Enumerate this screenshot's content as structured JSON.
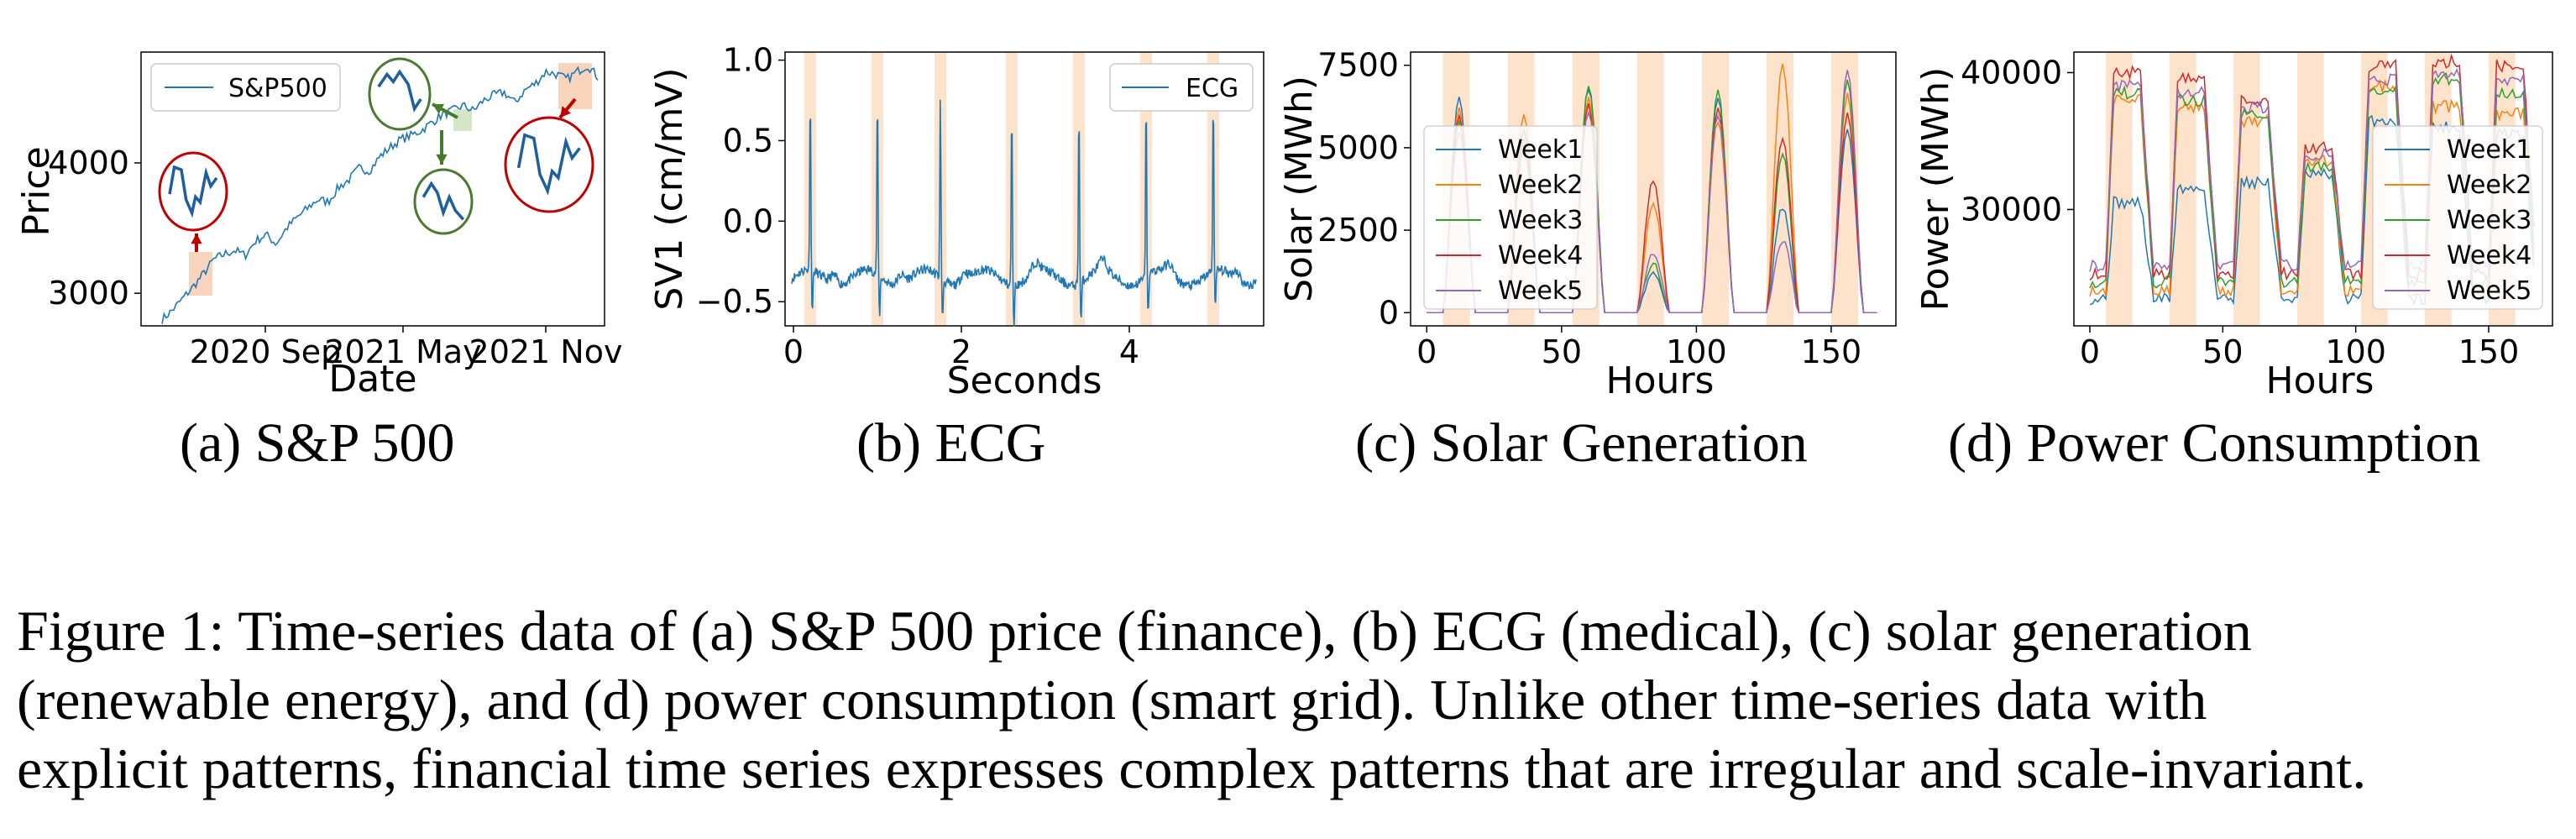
{
  "chart_data": [
    {
      "type": "line",
      "xlabel": "Date",
      "ylabel": "Price",
      "xticks": [
        "2020 Sep",
        "2021 May",
        "2021 Nov"
      ],
      "yticks": [
        3000,
        4000
      ],
      "ylim": [
        2750,
        4850
      ],
      "legend": [
        "S&P500"
      ],
      "legend_position": "top-left",
      "series": [
        {
          "name": "S&P500",
          "color": "#1f77b4",
          "values": [
            2800,
            2870,
            2960,
            3050,
            3150,
            3260,
            3300,
            3330,
            3290,
            3400,
            3450,
            3380,
            3500,
            3580,
            3650,
            3720,
            3700,
            3810,
            3870,
            3960,
            3940,
            4050,
            4120,
            4180,
            4210,
            4250,
            4310,
            4370,
            4400,
            4440,
            4400,
            4480,
            4520,
            4540,
            4460,
            4560,
            4610,
            4700,
            4680,
            4640,
            4700,
            4750,
            4660
          ]
        }
      ],
      "highlight_color": "#f7c9ad",
      "zoom_circle_colors": [
        "#c00000",
        "#4a7a2e"
      ]
    },
    {
      "type": "line",
      "xlabel": "Seconds",
      "ylabel": "SV1 (cm/mV)",
      "xticks": [
        0,
        2,
        4
      ],
      "yticks": [
        1.0,
        0.5,
        0.0,
        -0.5
      ],
      "ylim": [
        -0.65,
        1.05
      ],
      "xlim": [
        -0.1,
        5.6
      ],
      "legend": [
        "ECG"
      ],
      "legend_position": "top-right",
      "r_peaks_seconds": [
        0.2,
        1.0,
        1.75,
        2.6,
        3.4,
        4.2,
        5.0
      ],
      "baseline": -0.35,
      "peak_value": 0.88
    },
    {
      "type": "line",
      "xlabel": "Hours",
      "ylabel": "Solar (MWh)",
      "xticks": [
        0,
        50,
        100,
        150
      ],
      "yticks": [
        0,
        2500,
        5000,
        7500
      ],
      "ylim": [
        -400,
        7900
      ],
      "xlim": [
        -6,
        174
      ],
      "legend_position": "left",
      "series": [
        {
          "name": "Week1",
          "color": "#1f77b4",
          "daily_peaks": [
            6500,
            5500,
            6800,
            1200,
            6500,
            3200,
            5500
          ]
        },
        {
          "name": "Week2",
          "color": "#ff7f0e",
          "daily_peaks": [
            6200,
            6000,
            6500,
            3300,
            5800,
            7500,
            6600
          ]
        },
        {
          "name": "Week3",
          "color": "#2ca02c",
          "daily_peaks": [
            5800,
            5600,
            6900,
            1500,
            6700,
            4800,
            7000
          ]
        },
        {
          "name": "Week4",
          "color": "#d62728",
          "daily_peaks": [
            6000,
            5200,
            6300,
            4000,
            6200,
            5300,
            6000
          ]
        },
        {
          "name": "Week5",
          "color": "#9467bd",
          "daily_peaks": [
            5500,
            4900,
            6100,
            1800,
            6000,
            2200,
            7300
          ]
        }
      ]
    },
    {
      "type": "line",
      "xlabel": "Hours",
      "ylabel": "Power (MWh)",
      "xticks": [
        0,
        50,
        100,
        150
      ],
      "yticks": [
        30000,
        40000
      ],
      "ylim": [
        21500,
        41500
      ],
      "xlim": [
        -6,
        174
      ],
      "legend_position": "right",
      "series": [
        {
          "name": "Week1",
          "color": "#1f77b4",
          "daily_peaks": [
            30500,
            31500,
            32000,
            32500,
            36500,
            36000,
            35500
          ]
        },
        {
          "name": "Week2",
          "color": "#ff7f0e",
          "daily_peaks": [
            38000,
            37500,
            36500,
            33500,
            39000,
            37500,
            37000
          ]
        },
        {
          "name": "Week3",
          "color": "#2ca02c",
          "daily_peaks": [
            38500,
            38000,
            37000,
            33000,
            38500,
            39500,
            38500
          ]
        },
        {
          "name": "Week4",
          "color": "#d62728",
          "daily_peaks": [
            40000,
            39500,
            38000,
            34500,
            40500,
            40800,
            40500
          ]
        },
        {
          "name": "Week5",
          "color": "#9467bd",
          "daily_peaks": [
            39000,
            38500,
            37500,
            34000,
            39500,
            40000,
            39500
          ]
        }
      ]
    }
  ],
  "subcaptions": [
    "(a)  S&P 500",
    "(b)  ECG",
    "(c)  Solar Generation",
    "(d)  Power Consumption"
  ],
  "figure_caption": [
    "Figure 1: Time-series data of (a) S&P 500 price (finance), (b) ECG (medical), (c) solar generation",
    "(renewable energy), and (d) power consumption (smart grid).  Unlike other time-series data with",
    "explicit patterns, financial time series expresses complex patterns that are irregular and scale-invariant."
  ]
}
